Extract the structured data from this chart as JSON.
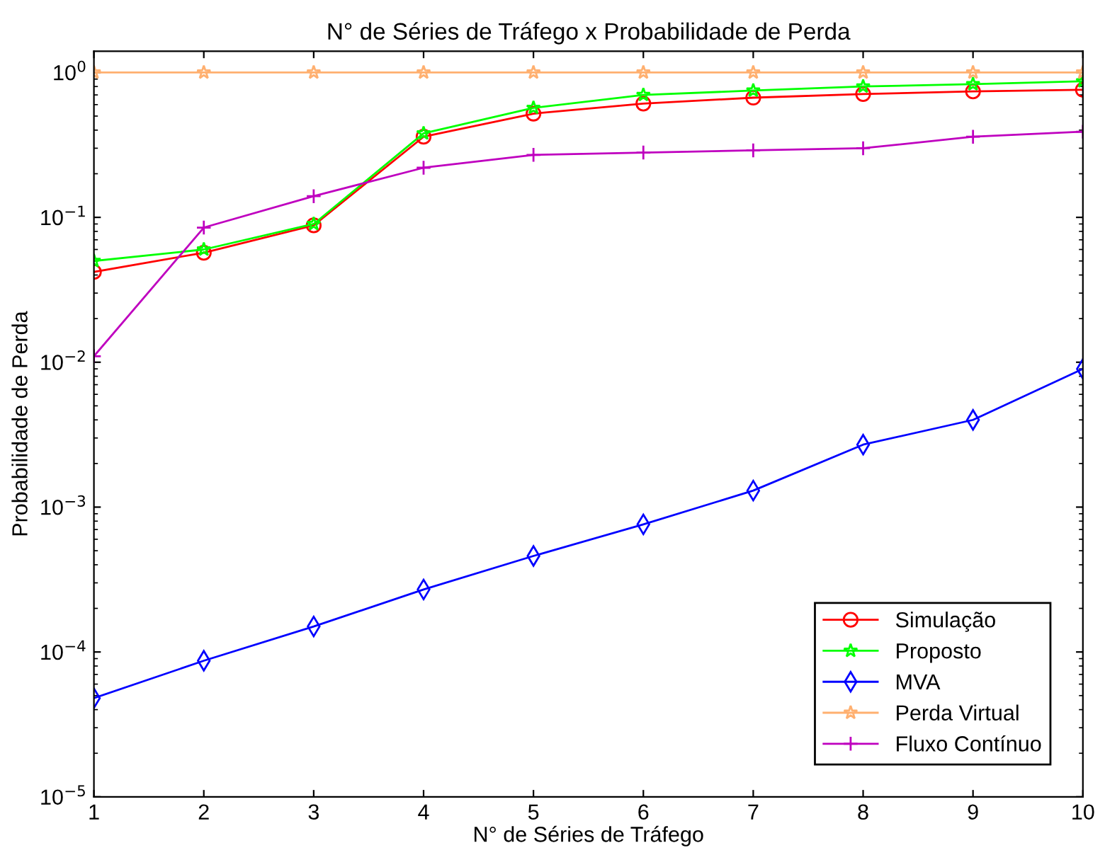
{
  "chart_data": {
    "type": "line",
    "title": "N° de Séries de Tráfego x Probabilidade de Perda",
    "xlabel": "N° de Séries de Tráfego",
    "ylabel": "Probabilidade de Perda",
    "x": [
      1,
      2,
      3,
      4,
      5,
      6,
      7,
      8,
      9,
      10
    ],
    "xlim": [
      1,
      10
    ],
    "xticks": [
      1,
      2,
      3,
      4,
      5,
      6,
      7,
      8,
      9,
      10
    ],
    "log": "y",
    "ylim": [
      1e-05,
      1.4
    ],
    "yticks": [
      {
        "value": 1e-05,
        "label": "10$^{−5}$"
      },
      {
        "value": 0.0001,
        "label": "10$^{−4}$"
      },
      {
        "value": 0.001,
        "label": "10$^{−3}$"
      },
      {
        "value": 0.01,
        "label": "10$^{−2}$"
      },
      {
        "value": 0.1,
        "label": "10$^{−1}$"
      },
      {
        "value": 1,
        "label": "10$^{0}$"
      }
    ],
    "grid": false,
    "legend": "bottom right",
    "line_style": "solid",
    "series": [
      {
        "name": "Simulação",
        "color": "#ff0000",
        "marker": "circle",
        "values": [
          0.042,
          0.057,
          0.088,
          0.36,
          0.52,
          0.61,
          0.67,
          0.71,
          0.74,
          0.76
        ]
      },
      {
        "name": "Proposto",
        "color": "#00ff00",
        "marker": "star",
        "values": [
          0.05,
          0.06,
          0.09,
          0.38,
          0.57,
          0.7,
          0.75,
          0.8,
          0.83,
          0.87
        ]
      },
      {
        "name": "MVA",
        "color": "#0000ff",
        "marker": "diamond",
        "values": [
          4.8e-05,
          8.7e-05,
          0.00015,
          0.00027,
          0.00046,
          0.00076,
          0.0013,
          0.0027,
          0.004,
          0.009
        ]
      },
      {
        "name": "Perda Virtual",
        "color": "#ffb070",
        "marker": "star",
        "values": [
          1,
          1,
          1,
          1,
          1,
          1,
          1,
          1,
          1,
          1
        ]
      },
      {
        "name": "Fluxo Contínuo",
        "color": "#bf00bf",
        "marker": "cross",
        "values": [
          0.011,
          0.085,
          0.14,
          0.22,
          0.27,
          0.28,
          0.29,
          0.3,
          0.36,
          0.39
        ]
      }
    ]
  }
}
